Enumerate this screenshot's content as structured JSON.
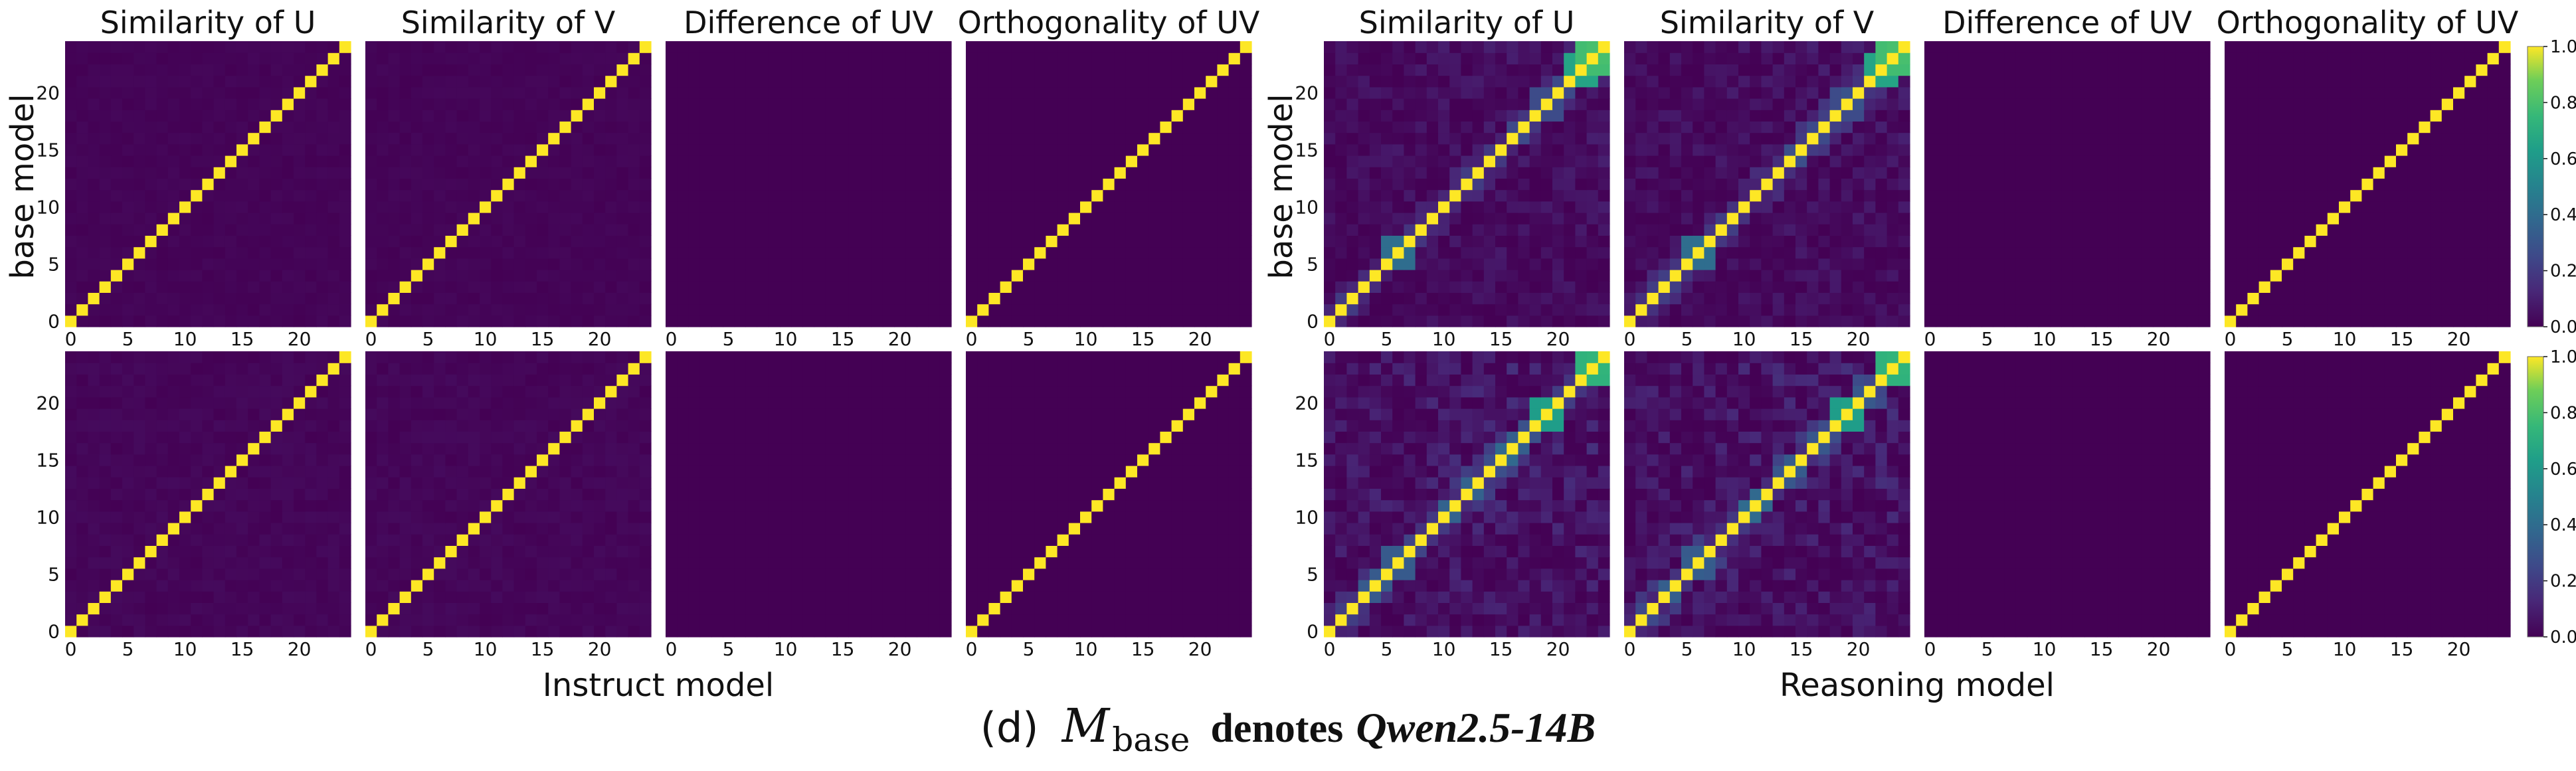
{
  "chart_data": {
    "type": "heatmap",
    "colormap": "viridis",
    "matrix_size": 25,
    "subplot_titles": [
      "Similarity of U",
      "Similarity of V",
      "Difference of UV",
      "Orthogonality of UV"
    ],
    "ylabel": "base model",
    "xticks": [
      "0",
      "5",
      "10",
      "15",
      "20"
    ],
    "yticks": [
      "0",
      "5",
      "10",
      "15",
      "20"
    ],
    "colorbar_ticks": [
      "0.0",
      "0.2",
      "0.4",
      "0.6",
      "0.8",
      "1.0"
    ],
    "value_range": [
      0,
      1
    ],
    "groups": [
      {
        "xlabel": "Instruct model",
        "has_colorbar": false,
        "rows": [
          {
            "panels": [
              {
                "title": "Similarity of U",
                "pattern": "identity",
                "diagonal": 1.0,
                "off_diagonal_max": 0.02
              },
              {
                "title": "Similarity of V",
                "pattern": "identity",
                "diagonal": 1.0,
                "off_diagonal_max": 0.02
              },
              {
                "title": "Difference of UV",
                "pattern": "zeros"
              },
              {
                "title": "Orthogonality of UV",
                "pattern": "identity",
                "diagonal": 1.0,
                "off_diagonal_max": 0.0
              }
            ]
          },
          {
            "panels": [
              {
                "title": "Similarity of U",
                "pattern": "identity",
                "diagonal": 1.0,
                "off_diagonal_max": 0.03
              },
              {
                "title": "Similarity of V",
                "pattern": "identity",
                "diagonal": 1.0,
                "off_diagonal_max": 0.03
              },
              {
                "title": "Difference of UV",
                "pattern": "zeros"
              },
              {
                "title": "Orthogonality of UV",
                "pattern": "identity",
                "diagonal": 1.0,
                "off_diagonal_max": 0.0
              }
            ]
          }
        ]
      },
      {
        "xlabel": "Reasoning model",
        "has_colorbar": true,
        "rows": [
          {
            "panels": [
              {
                "title": "Similarity of U",
                "pattern": "noisy",
                "diagonal": 1.0,
                "band": 0.2,
                "noise": 0.1,
                "blocks": [
                  [
                    6,
                    0.5
                  ],
                  [
                    19,
                    0.25
                  ],
                  [
                    22,
                    0.6
                  ],
                  [
                    23,
                    0.7
                  ]
                ]
              },
              {
                "title": "Similarity of V",
                "pattern": "noisy",
                "diagonal": 1.0,
                "band": 0.2,
                "noise": 0.1,
                "blocks": [
                  [
                    6,
                    0.5
                  ],
                  [
                    19,
                    0.25
                  ],
                  [
                    22,
                    0.6
                  ],
                  [
                    23,
                    0.7
                  ]
                ]
              },
              {
                "title": "Difference of UV",
                "pattern": "zeros"
              },
              {
                "title": "Orthogonality of UV",
                "pattern": "identity",
                "diagonal": 1.0,
                "off_diagonal_max": 0.0
              }
            ]
          },
          {
            "panels": [
              {
                "title": "Similarity of U",
                "pattern": "noisy",
                "diagonal": 1.0,
                "band": 0.28,
                "noise": 0.16,
                "blocks": [
                  [
                    6,
                    0.4
                  ],
                  [
                    19,
                    0.6
                  ],
                  [
                    23,
                    0.65
                  ]
                ]
              },
              {
                "title": "Similarity of V",
                "pattern": "noisy",
                "diagonal": 1.0,
                "band": 0.28,
                "noise": 0.16,
                "blocks": [
                  [
                    6,
                    0.4
                  ],
                  [
                    19,
                    0.6
                  ],
                  [
                    23,
                    0.65
                  ]
                ]
              },
              {
                "title": "Difference of UV",
                "pattern": "zeros"
              },
              {
                "title": "Orthogonality of UV",
                "pattern": "identity",
                "diagonal": 1.0,
                "off_diagonal_max": 0.0
              }
            ]
          }
        ]
      }
    ]
  },
  "caption": {
    "label": "(d)",
    "symbol": "M",
    "subscript": "base",
    "denotes": "denotes",
    "model_name": "Qwen2.5-14B"
  }
}
